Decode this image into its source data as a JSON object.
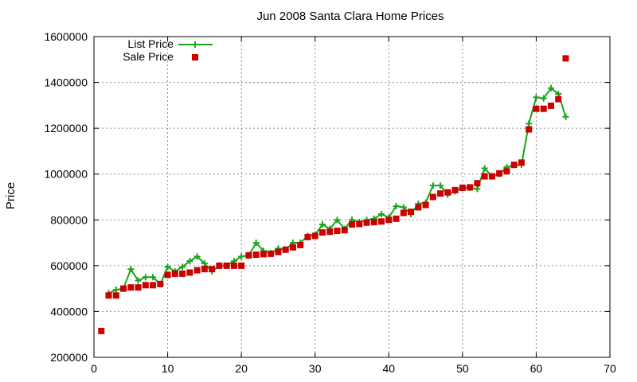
{
  "chart_data": {
    "type": "line",
    "title": "Jun 2008 Santa Clara Home Prices",
    "xlabel": "",
    "ylabel": "Price",
    "xlim": [
      0,
      70
    ],
    "ylim": [
      200000,
      1600000
    ],
    "x_ticks": [
      "0",
      "10",
      "20",
      "30",
      "40",
      "50",
      "60",
      "70"
    ],
    "y_ticks": [
      "200000",
      "400000",
      "600000",
      "800000",
      "1000000",
      "1200000",
      "1400000",
      "1600000"
    ],
    "grid": true,
    "legend_position": "top-left",
    "series": [
      {
        "name": "List Price",
        "style": "line-with-plus-markers",
        "color": "#1aa51a",
        "points": [
          [
            2,
            480000
          ],
          [
            3,
            495000
          ],
          [
            4,
            500000
          ],
          [
            5,
            585000
          ],
          [
            6,
            535000
          ],
          [
            7,
            550000
          ],
          [
            8,
            550000
          ],
          [
            9,
            520000
          ],
          [
            10,
            595000
          ],
          [
            11,
            575000
          ],
          [
            12,
            595000
          ],
          [
            13,
            620000
          ],
          [
            14,
            640000
          ],
          [
            15,
            610000
          ],
          [
            16,
            575000
          ],
          [
            17,
            600000
          ],
          [
            18,
            600000
          ],
          [
            19,
            620000
          ],
          [
            20,
            640000
          ],
          [
            21,
            645000
          ],
          [
            22,
            700000
          ],
          [
            23,
            665000
          ],
          [
            24,
            655000
          ],
          [
            25,
            675000
          ],
          [
            26,
            670000
          ],
          [
            27,
            700000
          ],
          [
            28,
            700000
          ],
          [
            29,
            730000
          ],
          [
            30,
            735000
          ],
          [
            31,
            780000
          ],
          [
            32,
            760000
          ],
          [
            33,
            800000
          ],
          [
            34,
            760000
          ],
          [
            35,
            800000
          ],
          [
            36,
            790000
          ],
          [
            37,
            800000
          ],
          [
            38,
            805000
          ],
          [
            39,
            825000
          ],
          [
            40,
            810000
          ],
          [
            41,
            860000
          ],
          [
            42,
            855000
          ],
          [
            43,
            825000
          ],
          [
            44,
            870000
          ],
          [
            45,
            875000
          ],
          [
            46,
            950000
          ],
          [
            47,
            950000
          ],
          [
            48,
            910000
          ],
          [
            49,
            925000
          ],
          [
            50,
            940000
          ],
          [
            51,
            940000
          ],
          [
            52,
            935000
          ],
          [
            53,
            1025000
          ],
          [
            54,
            990000
          ],
          [
            55,
            1000000
          ],
          [
            56,
            1030000
          ],
          [
            57,
            1040000
          ],
          [
            58,
            1040000
          ],
          [
            59,
            1220000
          ],
          [
            60,
            1335000
          ],
          [
            61,
            1330000
          ],
          [
            62,
            1375000
          ],
          [
            63,
            1350000
          ],
          [
            64,
            1250000
          ]
        ]
      },
      {
        "name": "Sale Price",
        "style": "square-markers",
        "color": "#cc0000",
        "points": [
          [
            1,
            315000
          ],
          [
            2,
            470000
          ],
          [
            3,
            470000
          ],
          [
            4,
            500000
          ],
          [
            5,
            505000
          ],
          [
            6,
            505000
          ],
          [
            7,
            515000
          ],
          [
            8,
            515000
          ],
          [
            9,
            520000
          ],
          [
            10,
            560000
          ],
          [
            11,
            565000
          ],
          [
            12,
            565000
          ],
          [
            13,
            570000
          ],
          [
            14,
            580000
          ],
          [
            15,
            585000
          ],
          [
            16,
            585000
          ],
          [
            17,
            600000
          ],
          [
            18,
            600000
          ],
          [
            19,
            600000
          ],
          [
            20,
            600000
          ],
          [
            21,
            645000
          ],
          [
            22,
            648000
          ],
          [
            23,
            650000
          ],
          [
            24,
            652000
          ],
          [
            25,
            660000
          ],
          [
            26,
            670000
          ],
          [
            27,
            680000
          ],
          [
            28,
            690000
          ],
          [
            29,
            725000
          ],
          [
            30,
            730000
          ],
          [
            31,
            745000
          ],
          [
            32,
            748000
          ],
          [
            33,
            752000
          ],
          [
            34,
            755000
          ],
          [
            35,
            780000
          ],
          [
            36,
            782000
          ],
          [
            37,
            788000
          ],
          [
            38,
            790000
          ],
          [
            39,
            793000
          ],
          [
            40,
            800000
          ],
          [
            41,
            805000
          ],
          [
            42,
            830000
          ],
          [
            43,
            835000
          ],
          [
            44,
            855000
          ],
          [
            45,
            865000
          ],
          [
            46,
            900000
          ],
          [
            47,
            915000
          ],
          [
            48,
            920000
          ],
          [
            49,
            930000
          ],
          [
            50,
            940000
          ],
          [
            51,
            942000
          ],
          [
            52,
            960000
          ],
          [
            53,
            990000
          ],
          [
            54,
            990000
          ],
          [
            55,
            1003000
          ],
          [
            56,
            1012000
          ],
          [
            57,
            1040000
          ],
          [
            58,
            1050000
          ],
          [
            59,
            1195000
          ],
          [
            60,
            1285000
          ],
          [
            61,
            1285000
          ],
          [
            62,
            1298000
          ],
          [
            63,
            1327000
          ],
          [
            64,
            1505000
          ]
        ]
      }
    ]
  }
}
